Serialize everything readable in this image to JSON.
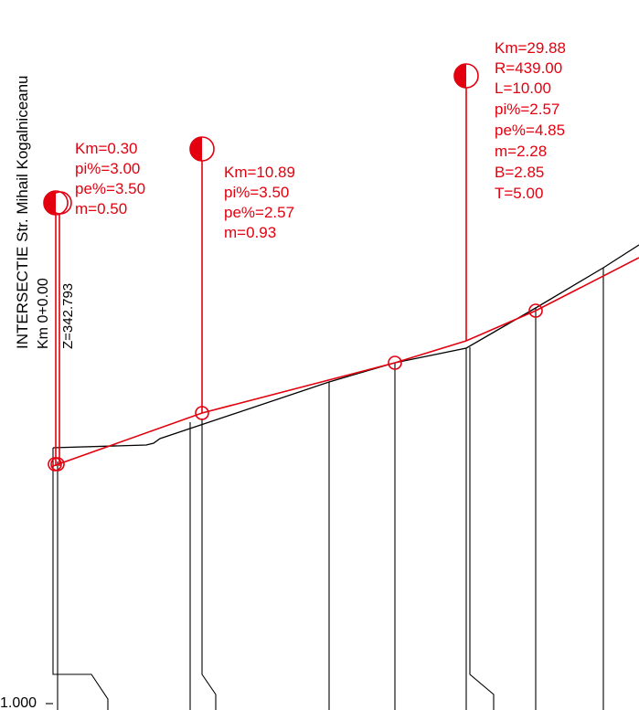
{
  "colors": {
    "design_line": "#e3000f",
    "terrain_line": "#000000",
    "background": "#ffffff"
  },
  "start_label": {
    "line1": "INTERSECTIE Str. Mihail Kogalniceanu",
    "line2": "Km 0+0.00",
    "line3": "Z=342.793"
  },
  "annotations": [
    {
      "id": "vertex-1",
      "lines": [
        "Km=0.30",
        "pi%=3.00",
        "pe%=3.50",
        "m=0.50"
      ]
    },
    {
      "id": "vertex-2",
      "lines": [
        "Km=10.89",
        "pi%=3.50",
        "pe%=2.57",
        "m=0.93"
      ]
    },
    {
      "id": "vertex-3",
      "lines": [
        "Km=29.88",
        "R=439.00",
        "L=10.00",
        "pi%=2.57",
        "pe%=4.85",
        "m=2.28",
        "B=2.85",
        "T=5.00"
      ]
    }
  ],
  "datum_label": "1.000",
  "symbols": {
    "vertex_marker": "half-filled-circle-icon",
    "profile_point": "circle-marker-icon"
  }
}
